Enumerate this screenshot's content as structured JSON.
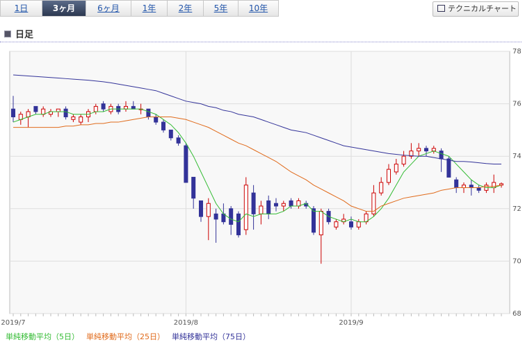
{
  "tabs": [
    "1日",
    "3ヶ月",
    "6ヶ月",
    "1年",
    "2年",
    "5年",
    "10年"
  ],
  "button": "テクニカルチャート",
  "section_title": "日足",
  "chart_data": {
    "type": "candlestick",
    "categories": [
      "2019/7",
      null,
      null,
      null,
      null,
      null,
      null,
      null,
      null,
      null,
      null,
      null,
      null,
      null,
      null,
      null,
      null,
      null,
      null,
      null,
      null,
      null,
      null,
      "2019/8",
      null,
      null,
      null,
      null,
      null,
      null,
      null,
      null,
      null,
      null,
      null,
      null,
      null,
      null,
      null,
      null,
      null,
      null,
      null,
      null,
      null,
      "2019/9",
      null,
      null,
      null,
      null,
      null,
      null,
      null,
      null,
      null,
      null,
      null,
      null,
      null,
      null,
      null,
      null,
      null,
      null,
      null,
      null
    ],
    "open": [
      75.8,
      75.4,
      75.5,
      75.9,
      75.6,
      75.6,
      75.7,
      75.8,
      75.4,
      75.3,
      75.5,
      75.7,
      76.0,
      75.7,
      75.9,
      75.8,
      75.9,
      75.8,
      75.8,
      75.5,
      75.3,
      75.0,
      74.7,
      74.4,
      73.2,
      72.3,
      71.7,
      71.8,
      71.8,
      72.0,
      71.8,
      71.2,
      72.6,
      71.8,
      72.3,
      72.2,
      72.1,
      72.3,
      72.1,
      72.2,
      72.0,
      71.0,
      71.9,
      71.3,
      71.5,
      71.5,
      71.3,
      71.5,
      71.8,
      72.6,
      73.0,
      73.4,
      73.7,
      74.0,
      74.2,
      74.3,
      74.2,
      74.2,
      73.9,
      73.1,
      72.8,
      72.9,
      72.8,
      72.7,
      72.8,
      72.9
    ],
    "high": [
      76.3,
      75.7,
      75.8,
      75.9,
      75.9,
      75.8,
      75.8,
      75.9,
      75.6,
      75.6,
      75.8,
      76.0,
      76.1,
      76.0,
      76.0,
      76.1,
      76.1,
      76.0,
      75.8,
      75.6,
      75.4,
      75.0,
      74.8,
      74.5,
      73.2,
      72.3,
      72.4,
      72.0,
      72.2,
      72.1,
      71.9,
      73.2,
      72.9,
      72.3,
      72.5,
      72.4,
      72.3,
      72.4,
      72.4,
      72.3,
      72.1,
      72.0,
      72.0,
      71.6,
      71.8,
      71.7,
      71.6,
      71.9,
      72.9,
      73.2,
      73.7,
      73.9,
      74.2,
      74.5,
      74.5,
      74.4,
      74.4,
      74.3,
      74.0,
      73.2,
      73.0,
      73.1,
      72.9,
      73.0,
      73.3,
      73.0
    ],
    "low": [
      75.3,
      75.2,
      75.1,
      75.6,
      75.5,
      75.5,
      75.5,
      75.4,
      75.3,
      75.2,
      75.3,
      75.6,
      75.7,
      75.6,
      75.6,
      75.7,
      75.8,
      75.6,
      75.4,
      75.2,
      74.9,
      74.6,
      74.4,
      73.0,
      72.0,
      71.5,
      70.8,
      70.7,
      71.4,
      71.0,
      70.9,
      71.0,
      71.2,
      71.4,
      71.6,
      71.9,
      71.9,
      72.0,
      72.0,
      72.0,
      71.0,
      69.9,
      71.4,
      71.2,
      71.4,
      71.2,
      71.2,
      71.4,
      71.7,
      72.5,
      72.9,
      73.3,
      73.6,
      73.9,
      74.0,
      74.0,
      74.1,
      73.4,
      73.2,
      72.6,
      72.6,
      72.5,
      72.6,
      72.6,
      72.6,
      72.8
    ],
    "close": [
      75.5,
      75.6,
      75.7,
      75.7,
      75.8,
      75.7,
      75.8,
      75.5,
      75.5,
      75.5,
      75.7,
      75.9,
      75.8,
      75.9,
      75.7,
      75.9,
      75.8,
      75.8,
      75.5,
      75.3,
      75.0,
      74.7,
      74.5,
      73.0,
      72.4,
      71.7,
      72.2,
      71.6,
      71.5,
      71.4,
      71.0,
      72.9,
      71.8,
      72.1,
      71.8,
      72.1,
      72.2,
      72.1,
      72.3,
      72.1,
      71.1,
      71.9,
      71.5,
      71.5,
      71.6,
      71.3,
      71.5,
      71.8,
      72.6,
      73.0,
      73.5,
      73.7,
      74.0,
      74.2,
      74.3,
      74.2,
      74.3,
      73.9,
      73.2,
      72.8,
      72.9,
      72.8,
      72.7,
      72.9,
      73.0,
      72.95
    ],
    "up_color": "#cc0000",
    "down_color": "#333399",
    "series": [
      {
        "name": "単純移動平均（5日）",
        "color": "#33bb33",
        "values": [
          75.3,
          75.4,
          75.5,
          75.6,
          75.6,
          75.7,
          75.7,
          75.7,
          75.6,
          75.6,
          75.6,
          75.7,
          75.7,
          75.8,
          75.8,
          75.8,
          75.8,
          75.8,
          75.7,
          75.6,
          75.4,
          75.2,
          74.9,
          74.5,
          74.0,
          73.4,
          72.8,
          72.2,
          71.8,
          71.6,
          71.5,
          71.8,
          71.7,
          71.8,
          71.8,
          71.8,
          71.9,
          72.1,
          72.1,
          72.2,
          71.9,
          71.9,
          71.7,
          71.6,
          71.5,
          71.6,
          71.5,
          71.5,
          71.7,
          72.0,
          72.4,
          72.9,
          73.4,
          73.7,
          74.0,
          74.1,
          74.2,
          74.1,
          74.0,
          73.7,
          73.4,
          73.1,
          72.9,
          72.8,
          72.8,
          72.9
        ]
      },
      {
        "name": "単純移動平均（25日）",
        "color": "#e06a1a",
        "values": [
          75.1,
          75.1,
          75.1,
          75.1,
          75.1,
          75.1,
          75.1,
          75.15,
          75.15,
          75.2,
          75.2,
          75.25,
          75.25,
          75.3,
          75.3,
          75.35,
          75.4,
          75.45,
          75.5,
          75.5,
          75.5,
          75.5,
          75.45,
          75.4,
          75.3,
          75.2,
          75.1,
          74.95,
          74.8,
          74.65,
          74.5,
          74.4,
          74.25,
          74.1,
          73.95,
          73.8,
          73.6,
          73.4,
          73.25,
          73.1,
          72.9,
          72.75,
          72.6,
          72.45,
          72.3,
          72.1,
          72.0,
          71.9,
          71.9,
          72.1,
          72.2,
          72.3,
          72.4,
          72.45,
          72.5,
          72.55,
          72.6,
          72.7,
          72.75,
          72.8,
          72.8,
          72.8,
          72.8,
          72.85,
          72.85,
          72.9
        ]
      },
      {
        "name": "単純移動平均（75日）",
        "color": "#333399",
        "values": [
          77.1,
          77.08,
          77.06,
          77.04,
          77.02,
          77.0,
          76.98,
          76.96,
          76.94,
          76.92,
          76.9,
          76.87,
          76.84,
          76.8,
          76.75,
          76.7,
          76.65,
          76.6,
          76.55,
          76.5,
          76.4,
          76.3,
          76.2,
          76.1,
          76.05,
          76.0,
          75.9,
          75.85,
          75.75,
          75.7,
          75.6,
          75.55,
          75.5,
          75.4,
          75.3,
          75.2,
          75.1,
          75.0,
          74.95,
          74.9,
          74.8,
          74.7,
          74.6,
          74.5,
          74.4,
          74.35,
          74.3,
          74.25,
          74.2,
          74.15,
          74.1,
          74.07,
          74.04,
          74.02,
          74.0,
          74.0,
          73.95,
          73.9,
          73.85,
          73.8,
          73.8,
          73.78,
          73.75,
          73.72,
          73.7,
          73.7
        ]
      }
    ],
    "ylim": [
      68,
      78
    ],
    "yticks": [
      68,
      70,
      72,
      74,
      76,
      78
    ],
    "grid": true
  }
}
